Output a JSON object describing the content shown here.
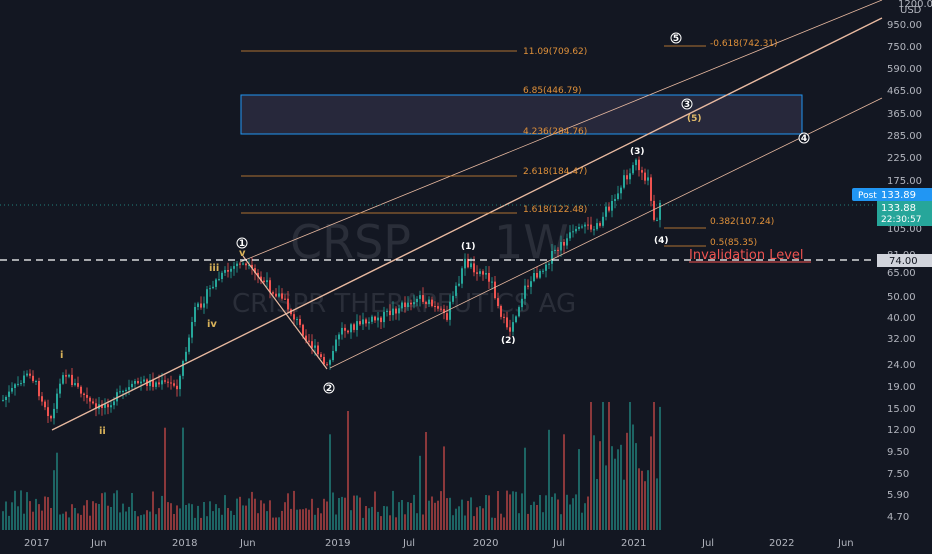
{
  "chart_data": {
    "type": "candlestick",
    "watermark": {
      "symbol": "CRSP",
      "interval": "1W",
      "name": "CRISPR THERAPEUTICS AG"
    },
    "x_ticks": [
      "2017",
      "Jun",
      "2018",
      "Jun",
      "2019",
      "Jul",
      "2020",
      "Jul",
      "2021",
      "Jul",
      "2022",
      "Jun"
    ],
    "y_axis": {
      "scale": "log",
      "currency": "USD",
      "top_label": "1200.00",
      "ticks": [
        "950.00",
        "750.00",
        "590.00",
        "465.00",
        "365.00",
        "285.00",
        "225.00",
        "175.00",
        "105.00",
        "81.00",
        "65.00",
        "50.00",
        "40.00",
        "32.00",
        "24.00",
        "19.00",
        "15.00",
        "12.00",
        "9.50",
        "7.50",
        "5.90",
        "4.70"
      ]
    },
    "price_badges": [
      {
        "label": "Post",
        "value": "133.89",
        "color": "#2196f3"
      },
      {
        "label": "",
        "value": "133.88",
        "sub": "22:30:57",
        "color": "#26a69a"
      },
      {
        "label": "",
        "value": "74.00",
        "color": "#d1d4dc"
      }
    ],
    "fib_levels": [
      {
        "label": "11.09(709.62)"
      },
      {
        "label": "6.85(446.79)"
      },
      {
        "label": "4.236(284.76)"
      },
      {
        "label": "2.618(184.47)"
      },
      {
        "label": "1.618(122.48)"
      },
      {
        "label": "-0.618(742.31)"
      },
      {
        "label": "0.382(107.24)"
      },
      {
        "label": "0.5(85.35)"
      }
    ],
    "annotations": {
      "invalidation_label": "Invalidation Level",
      "invalidation_price": 74.0,
      "waves": [
        "i",
        "ii",
        "iii",
        "iv",
        "v",
        "1",
        "2",
        "3",
        "4",
        "5",
        "(1)",
        "(2)",
        "(3)",
        "(4)",
        "(5)"
      ]
    },
    "colors": {
      "up": "#26a69a",
      "down": "#ef5350",
      "fib": "#e0913a",
      "channel": "#e8b9a0",
      "box": "#2196f3",
      "background": "#131722"
    }
  }
}
